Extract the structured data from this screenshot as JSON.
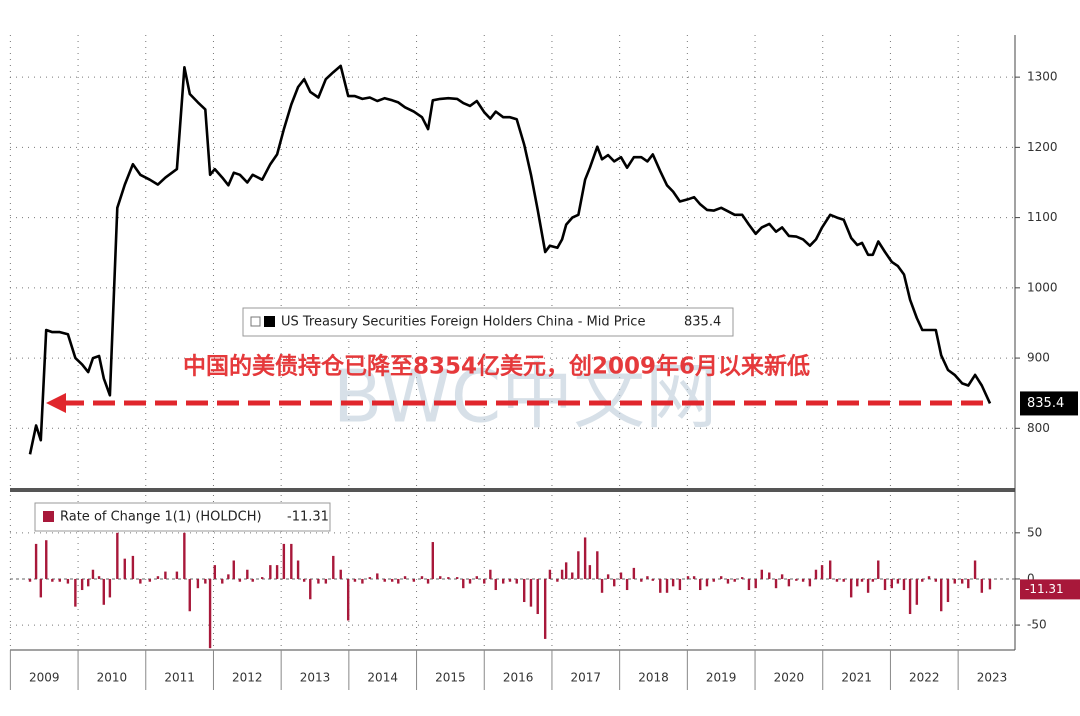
{
  "chart_data": [
    {
      "type": "line",
      "series": [
        {
          "name": "US Treasury Securities Foreign Holders China - Mid Price",
          "color": "#000000",
          "values": [
            763,
            804,
            783,
            940,
            937,
            937,
            934,
            900,
            891,
            880,
            900,
            903,
            871,
            847,
            1114,
            1147,
            1176,
            1161,
            1154,
            1147,
            1157,
            1169,
            1314,
            1276,
            1264,
            1254,
            1161,
            1169,
            1157,
            1146,
            1164,
            1161,
            1150,
            1161,
            1154,
            1176,
            1190,
            1226,
            1261,
            1286,
            1297,
            1279,
            1271,
            1297,
            1307,
            1316,
            1273,
            1273,
            1269,
            1271,
            1266,
            1270,
            1267,
            1264,
            1257,
            1251,
            1243,
            1226,
            1267,
            1269,
            1270,
            1269,
            1263,
            1259,
            1266,
            1250,
            1241,
            1251,
            1243,
            1243,
            1240,
            1204,
            1161,
            1111,
            1051,
            1060,
            1057,
            1069,
            1090,
            1100,
            1104,
            1154,
            1171,
            1201,
            1183,
            1189,
            1180,
            1186,
            1171,
            1186,
            1186,
            1180,
            1190,
            1166,
            1146,
            1137,
            1123,
            1126,
            1129,
            1119,
            1111,
            1110,
            1114,
            1109,
            1104,
            1104,
            1090,
            1077,
            1086,
            1091,
            1080,
            1086,
            1074,
            1073,
            1069,
            1060,
            1069,
            1086,
            1104,
            1100,
            1097,
            1071,
            1061,
            1064,
            1047,
            1047,
            1066,
            1051,
            1037,
            1031,
            1019,
            983,
            957,
            940,
            940,
            940,
            904,
            883,
            876,
            864,
            861,
            876,
            861,
            835.4
          ]
        }
      ],
      "x": [
        2009.29,
        2009.38,
        2009.45,
        2009.53,
        2009.62,
        2009.73,
        2009.85,
        2009.96,
        2010.06,
        2010.15,
        2010.22,
        2010.31,
        2010.38,
        2010.47,
        2010.58,
        2010.69,
        2010.81,
        2010.92,
        2011.06,
        2011.18,
        2011.29,
        2011.46,
        2011.57,
        2011.65,
        2011.77,
        2011.88,
        2011.95,
        2012.02,
        2012.13,
        2012.22,
        2012.3,
        2012.39,
        2012.5,
        2012.58,
        2012.72,
        2012.84,
        2012.94,
        2013.04,
        2013.15,
        2013.25,
        2013.34,
        2013.43,
        2013.55,
        2013.66,
        2013.77,
        2013.88,
        2013.99,
        2014.09,
        2014.2,
        2014.31,
        2014.42,
        2014.53,
        2014.64,
        2014.73,
        2014.83,
        2014.96,
        2015.08,
        2015.17,
        2015.24,
        2015.35,
        2015.47,
        2015.6,
        2015.69,
        2015.79,
        2015.89,
        2016.0,
        2016.09,
        2016.17,
        2016.28,
        2016.38,
        2016.48,
        2016.59,
        2016.69,
        2016.79,
        2016.9,
        2016.97,
        2017.08,
        2017.15,
        2017.21,
        2017.3,
        2017.39,
        2017.49,
        2017.56,
        2017.67,
        2017.74,
        2017.83,
        2017.92,
        2018.02,
        2018.11,
        2018.21,
        2018.32,
        2018.41,
        2018.49,
        2018.6,
        2018.7,
        2018.79,
        2018.89,
        2019.01,
        2019.1,
        2019.19,
        2019.29,
        2019.39,
        2019.5,
        2019.6,
        2019.7,
        2019.81,
        2019.91,
        2020.01,
        2020.1,
        2020.21,
        2020.31,
        2020.4,
        2020.5,
        2020.61,
        2020.71,
        2020.81,
        2020.9,
        2020.99,
        2021.11,
        2021.21,
        2021.31,
        2021.42,
        2021.51,
        2021.58,
        2021.67,
        2021.74,
        2021.82,
        2021.92,
        2022.02,
        2022.11,
        2022.2,
        2022.29,
        2022.39,
        2022.47,
        2022.57,
        2022.67,
        2022.75,
        2022.85,
        2022.95,
        2023.06,
        2023.15,
        2023.25,
        2023.35,
        2023.47
      ],
      "xlim": [
        2009.29,
        2023.84
      ],
      "xticks": [
        2009,
        2010,
        2011,
        2012,
        2013,
        2014,
        2015,
        2016,
        2017,
        2018,
        2019,
        2020,
        2021,
        2022,
        2023
      ],
      "ylim": [
        715,
        1360
      ],
      "yticks": [
        800,
        900,
        1000,
        1100,
        1200,
        1300
      ],
      "grid": true,
      "annotation": "中国的美债持仓已降至8354亿美元，创2009年6月以来新低",
      "watermark": "BWC中文网"
    },
    {
      "type": "bar",
      "series": [
        {
          "name": "Rate of Change 1(1) (HOLDCH)",
          "color": "#a8183a",
          "values": [
            -3,
            38,
            -20,
            42,
            -3,
            -3,
            -5,
            -30,
            -12,
            -8,
            10,
            3,
            -28,
            -20,
            50,
            22,
            25,
            -5,
            -3,
            3,
            8,
            8,
            50,
            -35,
            -10,
            -5,
            -75,
            15,
            -5,
            5,
            20,
            -3,
            10,
            -3,
            2,
            15,
            15,
            38,
            38,
            20,
            -3,
            -22,
            -5,
            -5,
            25,
            10,
            -45,
            -3,
            -5,
            2,
            6,
            -3,
            -3,
            -5,
            3,
            -3,
            3,
            -5,
            40,
            3,
            2,
            2,
            -10,
            -5,
            3,
            -5,
            10,
            -12,
            -5,
            -3,
            -5,
            -25,
            -30,
            -38,
            -65,
            10,
            -3,
            10,
            18,
            7,
            30,
            45,
            15,
            30,
            -15,
            5,
            -8,
            7,
            -12,
            12,
            -3,
            3,
            -2,
            -15,
            -15,
            -8,
            -12,
            3,
            3,
            -12,
            -8,
            -3,
            3,
            -5,
            -3,
            2,
            -12,
            -10,
            10,
            7,
            -10,
            5,
            -8,
            -2,
            -3,
            -8,
            10,
            15,
            20,
            -3,
            -3,
            -20,
            -8,
            -3,
            -15,
            -3,
            20,
            -12,
            -10,
            -5,
            -12,
            -38,
            -28,
            -3,
            3,
            -3,
            -35,
            -25,
            -5,
            -5,
            -10,
            20,
            -15,
            -11.31
          ]
        }
      ],
      "x": [
        2009.29,
        2009.38,
        2009.45,
        2009.53,
        2009.62,
        2009.73,
        2009.85,
        2009.96,
        2010.06,
        2010.15,
        2010.22,
        2010.31,
        2010.38,
        2010.47,
        2010.58,
        2010.69,
        2010.81,
        2010.92,
        2011.06,
        2011.18,
        2011.29,
        2011.46,
        2011.57,
        2011.65,
        2011.77,
        2011.88,
        2011.95,
        2012.02,
        2012.13,
        2012.22,
        2012.3,
        2012.39,
        2012.5,
        2012.58,
        2012.72,
        2012.84,
        2012.94,
        2013.04,
        2013.15,
        2013.25,
        2013.34,
        2013.43,
        2013.55,
        2013.66,
        2013.77,
        2013.88,
        2013.99,
        2014.09,
        2014.2,
        2014.31,
        2014.42,
        2014.53,
        2014.64,
        2014.73,
        2014.83,
        2014.96,
        2015.08,
        2015.17,
        2015.24,
        2015.35,
        2015.47,
        2015.6,
        2015.69,
        2015.79,
        2015.89,
        2016.0,
        2016.09,
        2016.17,
        2016.28,
        2016.38,
        2016.48,
        2016.59,
        2016.69,
        2016.79,
        2016.9,
        2016.97,
        2017.08,
        2017.15,
        2017.21,
        2017.3,
        2017.39,
        2017.49,
        2017.56,
        2017.67,
        2017.74,
        2017.83,
        2017.92,
        2018.02,
        2018.11,
        2018.21,
        2018.32,
        2018.41,
        2018.49,
        2018.6,
        2018.7,
        2018.79,
        2018.89,
        2019.01,
        2019.1,
        2019.19,
        2019.29,
        2019.39,
        2019.5,
        2019.6,
        2019.7,
        2019.81,
        2019.91,
        2020.01,
        2020.1,
        2020.21,
        2020.31,
        2020.4,
        2020.5,
        2020.61,
        2020.71,
        2020.81,
        2020.9,
        2020.99,
        2021.11,
        2021.21,
        2021.31,
        2021.42,
        2021.51,
        2021.58,
        2021.67,
        2021.74,
        2021.82,
        2021.92,
        2022.02,
        2022.11,
        2022.2,
        2022.29,
        2022.39,
        2022.47,
        2022.57,
        2022.67,
        2022.75,
        2022.85,
        2022.95,
        2023.06,
        2023.15,
        2023.25,
        2023.35,
        2023.47
      ],
      "xlim": [
        2009.29,
        2023.84
      ],
      "xticks": [
        2009,
        2010,
        2011,
        2012,
        2013,
        2014,
        2015,
        2016,
        2017,
        2018,
        2019,
        2020,
        2021,
        2022,
        2023
      ],
      "ylim": [
        -77,
        91
      ],
      "yticks": [
        -50,
        0,
        50
      ],
      "grid": true
    }
  ]
}
